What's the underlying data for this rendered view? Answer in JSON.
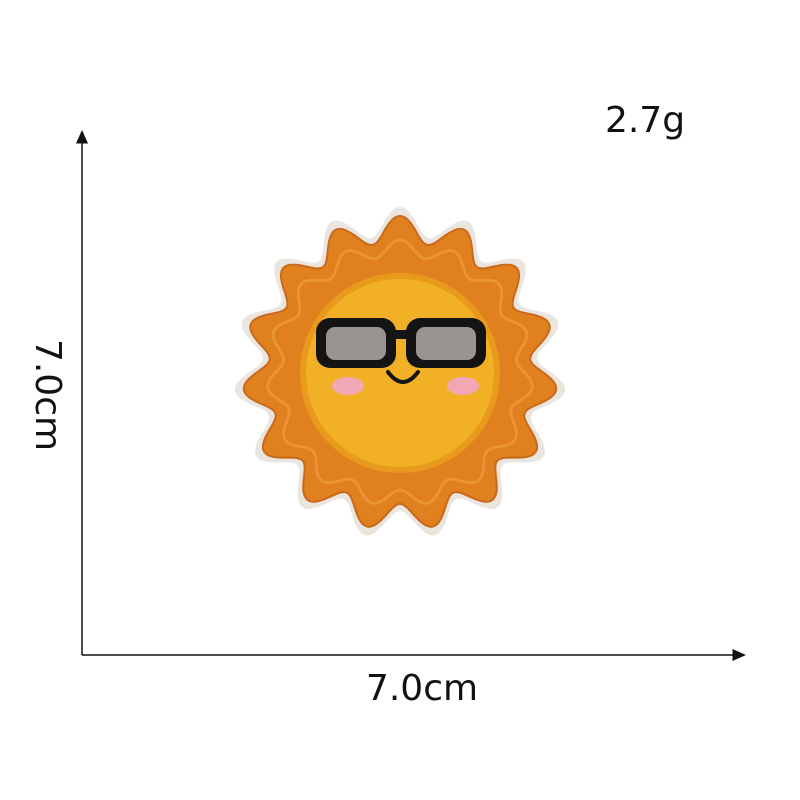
{
  "product": {
    "weight_label": "2.7g",
    "width_label": "7.0cm",
    "height_label": "7.0cm",
    "patch_icon": "sun-with-sunglasses-icon"
  },
  "colors": {
    "background": "#ffffff",
    "axis_line": "#111111",
    "patch_border": "#e8e2dc",
    "rays": "#e0801f",
    "rays_highlight": "#f0a040",
    "face": "#f2b027",
    "face_rim": "#e89a1c",
    "glasses_frame": "#141414",
    "glasses_lens": "#9a9490",
    "cheeks": "#f2a8b4"
  }
}
